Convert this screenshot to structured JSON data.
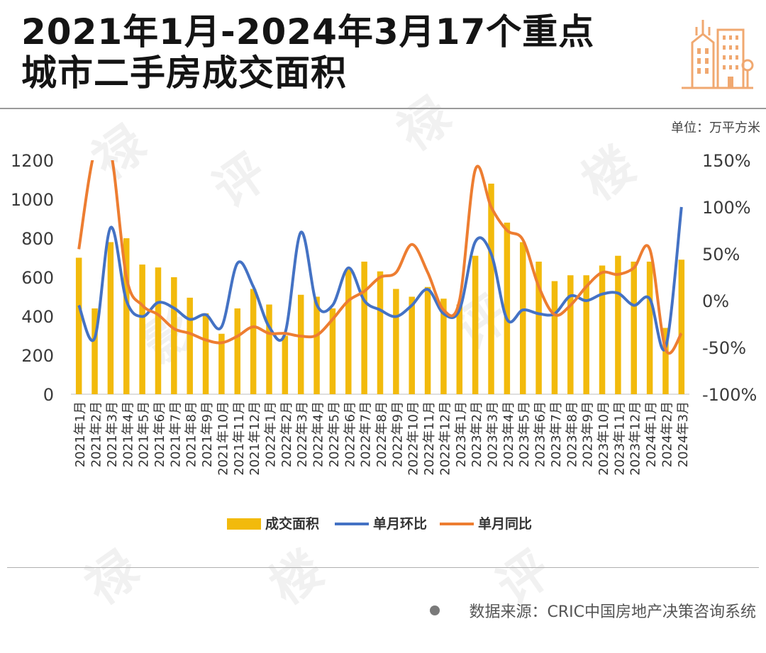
{
  "header": {
    "title_line1": "2021年1月-2024年3月17个重点",
    "title_line2": "城市二手房成交面积",
    "unit": "单位：万平方米"
  },
  "footer": {
    "source": "数据来源：CRIC中国房地产决策咨询系统"
  },
  "colors": {
    "bar": "#F2BA0C",
    "mom": "#4472C4",
    "yoy": "#ED7D31",
    "logo": "#F0A870"
  },
  "icons": {
    "logo": "building-icon"
  },
  "chart_data": {
    "type": "bar",
    "categories": [
      "2021年1月",
      "2021年2月",
      "2021年3月",
      "2021年4月",
      "2021年5月",
      "2021年6月",
      "2021年7月",
      "2021年8月",
      "2021年9月",
      "2021年10月",
      "2021年11月",
      "2021年12月",
      "2022年1月",
      "2022年2月",
      "2022年3月",
      "2022年4月",
      "2022年5月",
      "2022年6月",
      "2022年7月",
      "2022年8月",
      "2022年9月",
      "2022年10月",
      "2022年11月",
      "2022年12月",
      "2023年1月",
      "2023年2月",
      "2023年3月",
      "2023年4月",
      "2023年5月",
      "2023年6月",
      "2023年7月",
      "2023年8月",
      "2023年9月",
      "2023年10月",
      "2023年11月",
      "2023年12月",
      "2024年1月",
      "2024年2月",
      "2024年3月"
    ],
    "series": [
      {
        "name": "成交面积",
        "type": "bar",
        "axis": "left",
        "values": [
          700,
          440,
          780,
          800,
          665,
          650,
          600,
          495,
          415,
          310,
          440,
          540,
          460,
          300,
          510,
          500,
          440,
          640,
          680,
          630,
          540,
          500,
          550,
          490,
          460,
          710,
          1080,
          880,
          780,
          680,
          580,
          610,
          610,
          660,
          710,
          680,
          680,
          340,
          690
        ]
      },
      {
        "name": "单月环比",
        "type": "line",
        "axis": "right",
        "values": [
          -5,
          -40,
          78,
          0,
          -17,
          -2,
          -8,
          -20,
          -15,
          -28,
          40,
          15,
          -28,
          -35,
          73,
          -4,
          -5,
          35,
          0,
          -10,
          -17,
          -5,
          12,
          -14,
          -10,
          63,
          50,
          -20,
          -10,
          -14,
          -14,
          5,
          0,
          7,
          8,
          -5,
          2,
          -50,
          100
        ]
      },
      {
        "name": "单月同比",
        "type": "line",
        "axis": "right",
        "values": [
          55,
          160,
          160,
          25,
          -5,
          -15,
          -30,
          -35,
          -42,
          -45,
          -38,
          -28,
          -35,
          -35,
          -38,
          -37,
          -20,
          0,
          10,
          25,
          30,
          60,
          30,
          -10,
          0,
          140,
          100,
          75,
          65,
          15,
          -15,
          -5,
          15,
          30,
          28,
          35,
          55,
          -52,
          -35
        ]
      }
    ],
    "y_left": {
      "min": 0,
      "max": 1200,
      "ticks": [
        0,
        200,
        400,
        600,
        800,
        1000,
        1200
      ]
    },
    "y_right": {
      "min": -100,
      "max": 150,
      "ticks": [
        "-100%",
        "-50%",
        "0%",
        "50%",
        "100%",
        "150%"
      ]
    },
    "legend": {
      "position": "bottom",
      "entries": [
        "成交面积",
        "单月环比",
        "单月同比"
      ]
    }
  }
}
